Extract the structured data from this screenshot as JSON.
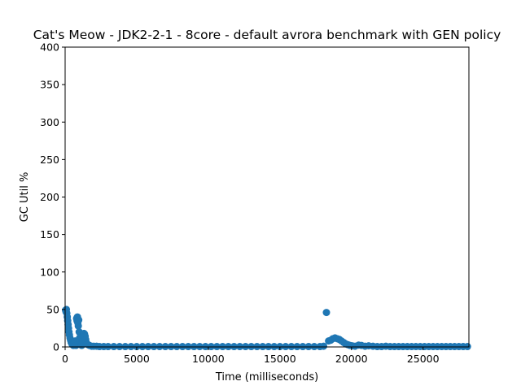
{
  "chart_data": {
    "type": "scatter",
    "title": "Cat's Meow - JDK2-2-1 - 8core -  default avrora benchmark with GEN policy",
    "xlabel": "Time (milliseconds)",
    "ylabel": "GC Util %",
    "xlim": [
      0,
      28200
    ],
    "ylim": [
      0,
      400
    ],
    "xticks": [
      0,
      5000,
      10000,
      15000,
      20000,
      25000
    ],
    "yticks": [
      0,
      50,
      100,
      150,
      200,
      250,
      300,
      350,
      400
    ],
    "grid": false,
    "marker_color": "#1f77b4",
    "series": [
      {
        "points": [
          [
            30,
            49
          ],
          [
            60,
            47
          ],
          [
            90,
            50
          ],
          [
            120,
            45
          ],
          [
            150,
            40
          ],
          [
            180,
            35
          ],
          [
            210,
            30
          ],
          [
            240,
            25
          ],
          [
            270,
            20
          ],
          [
            300,
            16
          ],
          [
            340,
            12
          ],
          [
            380,
            9
          ],
          [
            420,
            6
          ],
          [
            470,
            4
          ],
          [
            520,
            3
          ],
          [
            580,
            2
          ],
          [
            640,
            5
          ],
          [
            700,
            8
          ],
          [
            760,
            2
          ],
          [
            800,
            38
          ],
          [
            830,
            35
          ],
          [
            860,
            40
          ],
          [
            890,
            32
          ],
          [
            920,
            28
          ],
          [
            950,
            36
          ],
          [
            980,
            20
          ],
          [
            1010,
            12
          ],
          [
            1040,
            6
          ],
          [
            1080,
            4
          ],
          [
            1120,
            3
          ],
          [
            1160,
            2
          ],
          [
            1200,
            5
          ],
          [
            1240,
            8
          ],
          [
            1280,
            16
          ],
          [
            1320,
            18
          ],
          [
            1360,
            17
          ],
          [
            1400,
            14
          ],
          [
            1440,
            10
          ],
          [
            1480,
            6
          ],
          [
            1520,
            4
          ],
          [
            1600,
            3
          ],
          [
            1700,
            2
          ],
          [
            1850,
            1
          ],
          [
            2000,
            1
          ],
          [
            2200,
            1
          ],
          [
            2400,
            0.5
          ],
          [
            2700,
            0.5
          ],
          [
            3000,
            0.5
          ],
          [
            3400,
            0.5
          ],
          [
            3800,
            0.5
          ],
          [
            4200,
            0.5
          ],
          [
            4600,
            0.5
          ],
          [
            5000,
            0.5
          ],
          [
            5400,
            0.5
          ],
          [
            5800,
            0.5
          ],
          [
            6200,
            0.5
          ],
          [
            6600,
            0.5
          ],
          [
            7000,
            0.5
          ],
          [
            7400,
            0.5
          ],
          [
            7800,
            0.5
          ],
          [
            8200,
            0.5
          ],
          [
            8600,
            0.5
          ],
          [
            9000,
            0.5
          ],
          [
            9400,
            0.5
          ],
          [
            9800,
            0.5
          ],
          [
            10200,
            0.5
          ],
          [
            10600,
            0.5
          ],
          [
            11000,
            0.5
          ],
          [
            11400,
            0.5
          ],
          [
            11800,
            0.5
          ],
          [
            12200,
            0.5
          ],
          [
            12600,
            0.5
          ],
          [
            13000,
            0.5
          ],
          [
            13400,
            0.5
          ],
          [
            13800,
            0.5
          ],
          [
            14200,
            0.5
          ],
          [
            14600,
            0.5
          ],
          [
            15000,
            0.5
          ],
          [
            15400,
            0.5
          ],
          [
            15800,
            0.5
          ],
          [
            16200,
            0.5
          ],
          [
            16600,
            0.5
          ],
          [
            17000,
            0.5
          ],
          [
            17400,
            0.5
          ],
          [
            17800,
            0.5
          ],
          [
            18050,
            1
          ],
          [
            18250,
            46
          ],
          [
            18400,
            8
          ],
          [
            18550,
            9
          ],
          [
            18700,
            11
          ],
          [
            18850,
            12
          ],
          [
            19000,
            11
          ],
          [
            19150,
            10
          ],
          [
            19300,
            8
          ],
          [
            19450,
            6
          ],
          [
            19600,
            4
          ],
          [
            19750,
            3
          ],
          [
            19900,
            2
          ],
          [
            20050,
            1.5
          ],
          [
            20250,
            1
          ],
          [
            20500,
            2.5
          ],
          [
            20700,
            2
          ],
          [
            20950,
            1
          ],
          [
            21200,
            1.5
          ],
          [
            21500,
            1
          ],
          [
            21800,
            0.5
          ],
          [
            22100,
            0.5
          ],
          [
            22400,
            1
          ],
          [
            22700,
            0.5
          ],
          [
            23000,
            0.5
          ],
          [
            23300,
            0.5
          ],
          [
            23600,
            0.5
          ],
          [
            23900,
            0.5
          ],
          [
            24200,
            0.5
          ],
          [
            24500,
            0.5
          ],
          [
            24800,
            0.5
          ],
          [
            25100,
            0.5
          ],
          [
            25400,
            0.5
          ],
          [
            25700,
            0.5
          ],
          [
            26000,
            0.5
          ],
          [
            26300,
            0.5
          ],
          [
            26600,
            0.5
          ],
          [
            26900,
            0.5
          ],
          [
            27200,
            0.5
          ],
          [
            27500,
            0.5
          ],
          [
            27800,
            0.5
          ],
          [
            28100,
            0.5
          ]
        ]
      }
    ]
  }
}
